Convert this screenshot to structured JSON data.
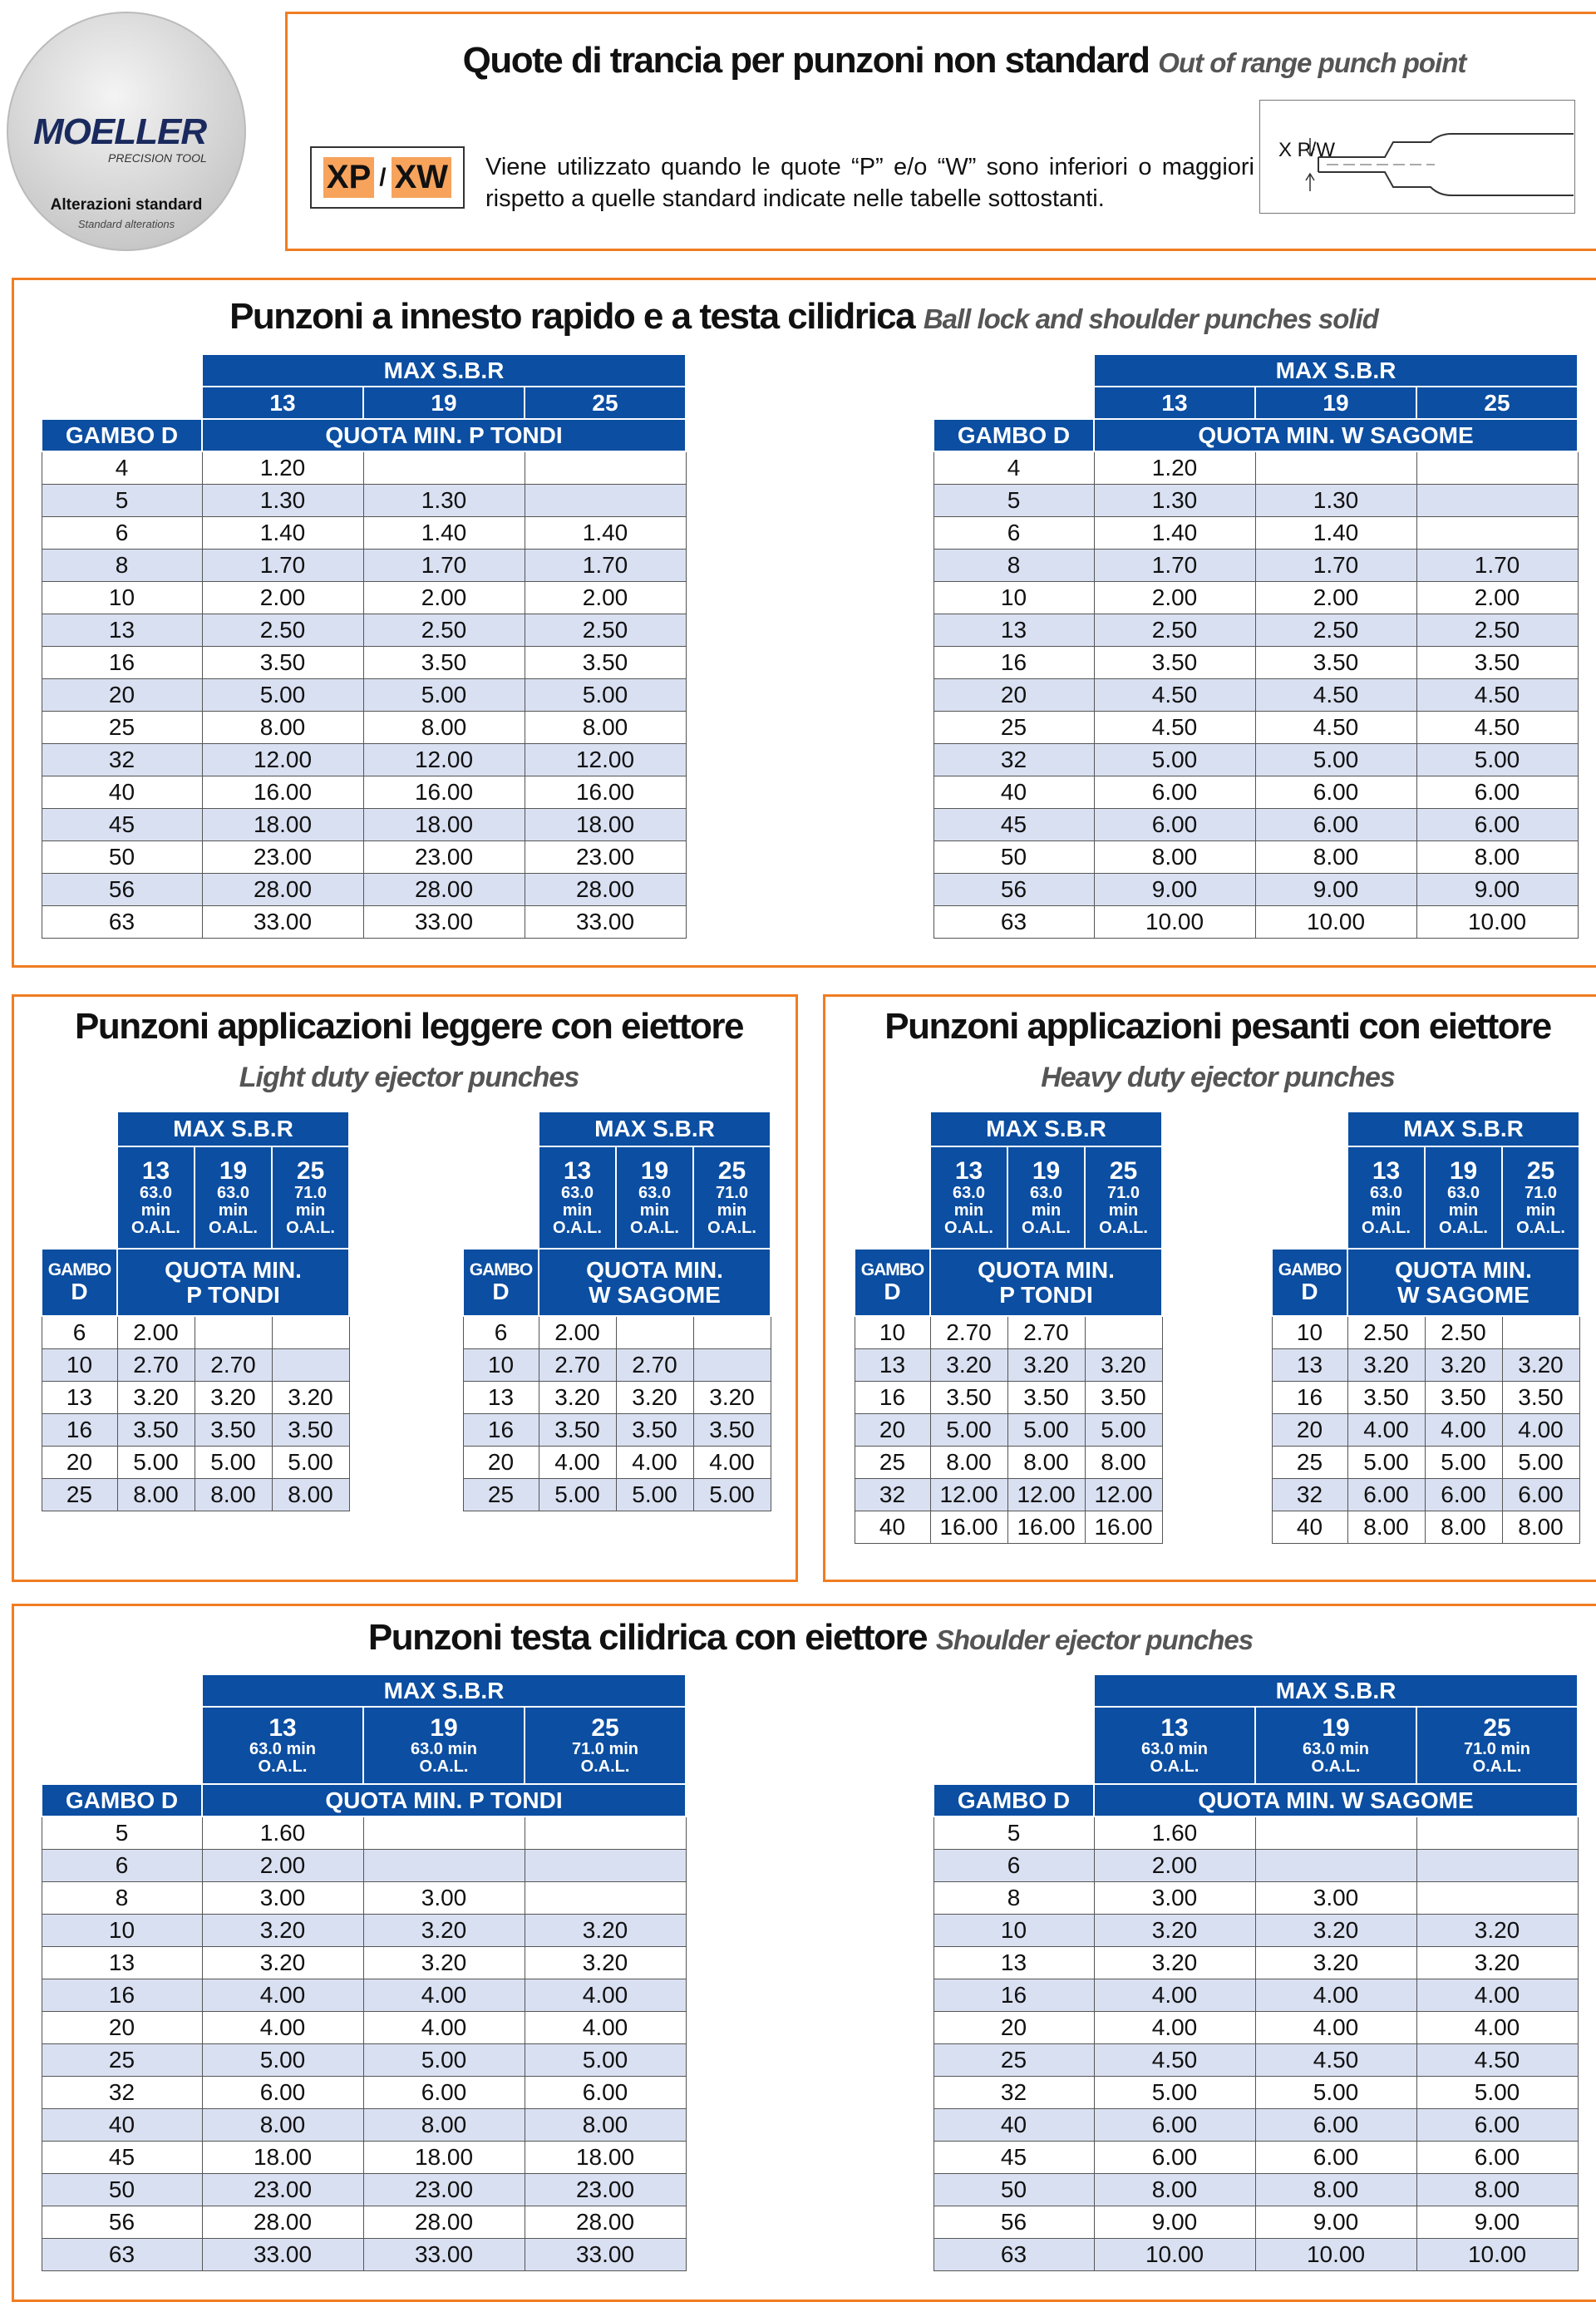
{
  "header": {
    "logo_brand": "MOELLER",
    "logo_sub": "PRECISION TOOL",
    "logo_title": "Alterazioni standard",
    "logo_subtitle": "Standard alterations",
    "title": "Quote di trancia per punzoni non standard",
    "title_en": "Out of range punch point",
    "code1": "XP",
    "slash": "/",
    "code2": "XW",
    "description": "Viene utilizzato quando le quote “P” e/o “W” sono inferiori o maggiori rispetto a quelle standard indicate nelle tabelle sottostanti.",
    "diagram_label": "X P/W"
  },
  "sections": [
    {
      "title": "Punzoni a innesto rapido e a testa cilidrica",
      "title_en": "Ball lock and shoulder punches solid",
      "tables": [
        {
          "group_header": "MAX S.B.R",
          "columns": [
            [
              "13"
            ],
            [
              "19"
            ],
            [
              "25"
            ]
          ],
          "row_header": [
            "GAMBO D"
          ],
          "sub_header": [
            "QUOTA MIN. P TONDI"
          ],
          "rows": [
            [
              "4",
              "1.20",
              null,
              null
            ],
            [
              "5",
              "1.30",
              "1.30",
              null
            ],
            [
              "6",
              "1.40",
              "1.40",
              "1.40"
            ],
            [
              "8",
              "1.70",
              "1.70",
              "1.70"
            ],
            [
              "10",
              "2.00",
              "2.00",
              "2.00"
            ],
            [
              "13",
              "2.50",
              "2.50",
              "2.50"
            ],
            [
              "16",
              "3.50",
              "3.50",
              "3.50"
            ],
            [
              "20",
              "5.00",
              "5.00",
              "5.00"
            ],
            [
              "25",
              "8.00",
              "8.00",
              "8.00"
            ],
            [
              "32",
              "12.00",
              "12.00",
              "12.00"
            ],
            [
              "40",
              "16.00",
              "16.00",
              "16.00"
            ],
            [
              "45",
              "18.00",
              "18.00",
              "18.00"
            ],
            [
              "50",
              "23.00",
              "23.00",
              "23.00"
            ],
            [
              "56",
              "28.00",
              "28.00",
              "28.00"
            ],
            [
              "63",
              "33.00",
              "33.00",
              "33.00"
            ]
          ]
        },
        {
          "group_header": "MAX S.B.R",
          "columns": [
            [
              "13"
            ],
            [
              "19"
            ],
            [
              "25"
            ]
          ],
          "row_header": [
            "GAMBO D"
          ],
          "sub_header": [
            "QUOTA MIN. W SAGOME"
          ],
          "rows": [
            [
              "4",
              "1.20",
              null,
              null
            ],
            [
              "5",
              "1.30",
              "1.30",
              null
            ],
            [
              "6",
              "1.40",
              "1.40",
              null
            ],
            [
              "8",
              "1.70",
              "1.70",
              "1.70"
            ],
            [
              "10",
              "2.00",
              "2.00",
              "2.00"
            ],
            [
              "13",
              "2.50",
              "2.50",
              "2.50"
            ],
            [
              "16",
              "3.50",
              "3.50",
              "3.50"
            ],
            [
              "20",
              "4.50",
              "4.50",
              "4.50"
            ],
            [
              "25",
              "4.50",
              "4.50",
              "4.50"
            ],
            [
              "32",
              "5.00",
              "5.00",
              "5.00"
            ],
            [
              "40",
              "6.00",
              "6.00",
              "6.00"
            ],
            [
              "45",
              "6.00",
              "6.00",
              "6.00"
            ],
            [
              "50",
              "8.00",
              "8.00",
              "8.00"
            ],
            [
              "56",
              "9.00",
              "9.00",
              "9.00"
            ],
            [
              "63",
              "10.00",
              "10.00",
              "10.00"
            ]
          ]
        }
      ]
    },
    {
      "title": "Punzoni applicazioni leggere con eiettore",
      "title_en": "Light duty ejector punches",
      "tables": [
        {
          "group_header": "MAX S.B.R",
          "columns": [
            [
              "13",
              "63.0",
              "min",
              "O.A.L."
            ],
            [
              "19",
              "63.0",
              "min",
              "O.A.L."
            ],
            [
              "25",
              "71.0",
              "min",
              "O.A.L."
            ]
          ],
          "row_header": [
            "GAMBO",
            "D"
          ],
          "sub_header": [
            "QUOTA MIN.",
            "P TONDI"
          ],
          "rows": [
            [
              "6",
              "2.00",
              null,
              null
            ],
            [
              "10",
              "2.70",
              "2.70",
              null
            ],
            [
              "13",
              "3.20",
              "3.20",
              "3.20"
            ],
            [
              "16",
              "3.50",
              "3.50",
              "3.50"
            ],
            [
              "20",
              "5.00",
              "5.00",
              "5.00"
            ],
            [
              "25",
              "8.00",
              "8.00",
              "8.00"
            ]
          ]
        },
        {
          "group_header": "MAX S.B.R",
          "columns": [
            [
              "13",
              "63.0",
              "min",
              "O.A.L."
            ],
            [
              "19",
              "63.0",
              "min",
              "O.A.L."
            ],
            [
              "25",
              "71.0",
              "min",
              "O.A.L."
            ]
          ],
          "row_header": [
            "GAMBO",
            "D"
          ],
          "sub_header": [
            "QUOTA MIN.",
            "W SAGOME"
          ],
          "rows": [
            [
              "6",
              "2.00",
              null,
              null
            ],
            [
              "10",
              "2.70",
              "2.70",
              null
            ],
            [
              "13",
              "3.20",
              "3.20",
              "3.20"
            ],
            [
              "16",
              "3.50",
              "3.50",
              "3.50"
            ],
            [
              "20",
              "4.00",
              "4.00",
              "4.00"
            ],
            [
              "25",
              "5.00",
              "5.00",
              "5.00"
            ]
          ]
        }
      ]
    },
    {
      "title": "Punzoni applicazioni pesanti con eiettore",
      "title_en": "Heavy duty ejector punches",
      "tables": [
        {
          "group_header": "MAX S.B.R",
          "columns": [
            [
              "13",
              "63.0",
              "min",
              "O.A.L."
            ],
            [
              "19",
              "63.0",
              "min",
              "O.A.L."
            ],
            [
              "25",
              "71.0",
              "min",
              "O.A.L."
            ]
          ],
          "row_header": [
            "GAMBO",
            "D"
          ],
          "sub_header": [
            "QUOTA MIN.",
            "P TONDI"
          ],
          "rows": [
            [
              "10",
              "2.70",
              "2.70",
              null
            ],
            [
              "13",
              "3.20",
              "3.20",
              "3.20"
            ],
            [
              "16",
              "3.50",
              "3.50",
              "3.50"
            ],
            [
              "20",
              "5.00",
              "5.00",
              "5.00"
            ],
            [
              "25",
              "8.00",
              "8.00",
              "8.00"
            ],
            [
              "32",
              "12.00",
              "12.00",
              "12.00"
            ],
            [
              "40",
              "16.00",
              "16.00",
              "16.00"
            ]
          ]
        },
        {
          "group_header": "MAX S.B.R",
          "columns": [
            [
              "13",
              "63.0",
              "min",
              "O.A.L."
            ],
            [
              "19",
              "63.0",
              "min",
              "O.A.L."
            ],
            [
              "25",
              "71.0",
              "min",
              "O.A.L."
            ]
          ],
          "row_header": [
            "GAMBO",
            "D"
          ],
          "sub_header": [
            "QUOTA MIN.",
            "W SAGOME"
          ],
          "rows": [
            [
              "10",
              "2.50",
              "2.50",
              null
            ],
            [
              "13",
              "3.20",
              "3.20",
              "3.20"
            ],
            [
              "16",
              "3.50",
              "3.50",
              "3.50"
            ],
            [
              "20",
              "4.00",
              "4.00",
              "4.00"
            ],
            [
              "25",
              "5.00",
              "5.00",
              "5.00"
            ],
            [
              "32",
              "6.00",
              "6.00",
              "6.00"
            ],
            [
              "40",
              "8.00",
              "8.00",
              "8.00"
            ]
          ]
        }
      ]
    },
    {
      "title": "Punzoni testa cilidrica con eiettore",
      "title_en": "Shoulder ejector punches",
      "tables": [
        {
          "group_header": "MAX S.B.R",
          "columns": [
            [
              "13",
              "63.0 min",
              "O.A.L."
            ],
            [
              "19",
              "63.0 min",
              "O.A.L."
            ],
            [
              "25",
              "71.0 min",
              "O.A.L."
            ]
          ],
          "row_header": [
            "GAMBO D"
          ],
          "sub_header": [
            "QUOTA MIN. P TONDI"
          ],
          "rows": [
            [
              "5",
              "1.60",
              null,
              null
            ],
            [
              "6",
              "2.00",
              null,
              null
            ],
            [
              "8",
              "3.00",
              "3.00",
              null
            ],
            [
              "10",
              "3.20",
              "3.20",
              "3.20"
            ],
            [
              "13",
              "3.20",
              "3.20",
              "3.20"
            ],
            [
              "16",
              "4.00",
              "4.00",
              "4.00"
            ],
            [
              "20",
              "4.00",
              "4.00",
              "4.00"
            ],
            [
              "25",
              "5.00",
              "5.00",
              "5.00"
            ],
            [
              "32",
              "6.00",
              "6.00",
              "6.00"
            ],
            [
              "40",
              "8.00",
              "8.00",
              "8.00"
            ],
            [
              "45",
              "18.00",
              "18.00",
              "18.00"
            ],
            [
              "50",
              "23.00",
              "23.00",
              "23.00"
            ],
            [
              "56",
              "28.00",
              "28.00",
              "28.00"
            ],
            [
              "63",
              "33.00",
              "33.00",
              "33.00"
            ]
          ]
        },
        {
          "group_header": "MAX S.B.R",
          "columns": [
            [
              "13",
              "63.0 min",
              "O.A.L."
            ],
            [
              "19",
              "63.0 min",
              "O.A.L."
            ],
            [
              "25",
              "71.0 min",
              "O.A.L."
            ]
          ],
          "row_header": [
            "GAMBO D"
          ],
          "sub_header": [
            "QUOTA MIN. W SAGOME"
          ],
          "rows": [
            [
              "5",
              "1.60",
              null,
              null
            ],
            [
              "6",
              "2.00",
              null,
              null
            ],
            [
              "8",
              "3.00",
              "3.00",
              null
            ],
            [
              "10",
              "3.20",
              "3.20",
              "3.20"
            ],
            [
              "13",
              "3.20",
              "3.20",
              "3.20"
            ],
            [
              "16",
              "4.00",
              "4.00",
              "4.00"
            ],
            [
              "20",
              "4.00",
              "4.00",
              "4.00"
            ],
            [
              "25",
              "4.50",
              "4.50",
              "4.50"
            ],
            [
              "32",
              "5.00",
              "5.00",
              "5.00"
            ],
            [
              "40",
              "6.00",
              "6.00",
              "6.00"
            ],
            [
              "45",
              "6.00",
              "6.00",
              "6.00"
            ],
            [
              "50",
              "8.00",
              "8.00",
              "8.00"
            ],
            [
              "56",
              "9.00",
              "9.00",
              "9.00"
            ],
            [
              "63",
              "10.00",
              "10.00",
              "10.00"
            ]
          ]
        }
      ]
    }
  ]
}
